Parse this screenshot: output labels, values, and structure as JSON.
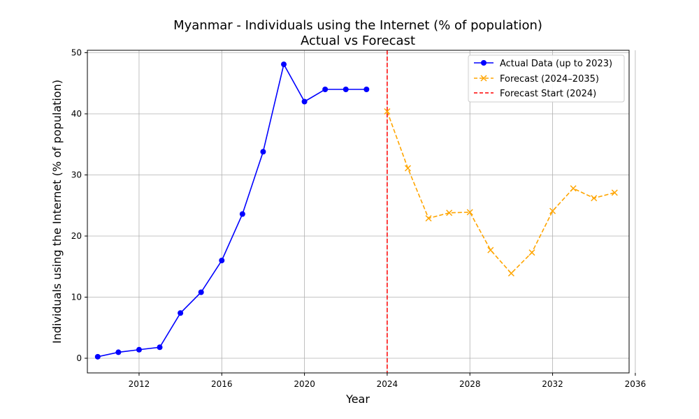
{
  "chart_data": {
    "type": "line",
    "title": "Myanmar - Individuals using the Internet (% of population)",
    "subtitle": "Actual vs Forecast",
    "xlabel": "Year",
    "ylabel": "Individuals using the Internet (% of population)",
    "xlim": [
      2009.5,
      2035.7
    ],
    "ylim": [
      -2.4,
      50.4
    ],
    "xticks": [
      2012,
      2016,
      2020,
      2024,
      2028,
      2032,
      2036
    ],
    "yticks": [
      0,
      10,
      20,
      30,
      40,
      50
    ],
    "grid": true,
    "legend_position": "top-right",
    "series": [
      {
        "name": "Actual Data (up to 2023)",
        "color": "#0000ff",
        "style": "solid",
        "marker": "circle",
        "x": [
          2010,
          2011,
          2012,
          2013,
          2014,
          2015,
          2016,
          2017,
          2018,
          2019,
          2020,
          2021,
          2022,
          2023
        ],
        "values": [
          0.25,
          0.98,
          1.4,
          1.8,
          7.4,
          10.8,
          16.0,
          23.6,
          33.8,
          48.1,
          42.0,
          44.0,
          44.0,
          44.0
        ]
      },
      {
        "name": "Forecast (2024–2035)",
        "color": "#ffa500",
        "style": "dashed",
        "marker": "x",
        "x": [
          2024,
          2025,
          2026,
          2027,
          2028,
          2029,
          2030,
          2031,
          2032,
          2033,
          2034,
          2035
        ],
        "values": [
          40.4,
          31.1,
          22.9,
          23.8,
          23.9,
          17.7,
          13.9,
          17.3,
          24.1,
          27.8,
          26.2,
          27.1
        ]
      }
    ],
    "vertical_lines": [
      {
        "name": "Forecast Start (2024)",
        "x": 2024,
        "color": "#ff0000",
        "style": "dashed"
      }
    ]
  }
}
